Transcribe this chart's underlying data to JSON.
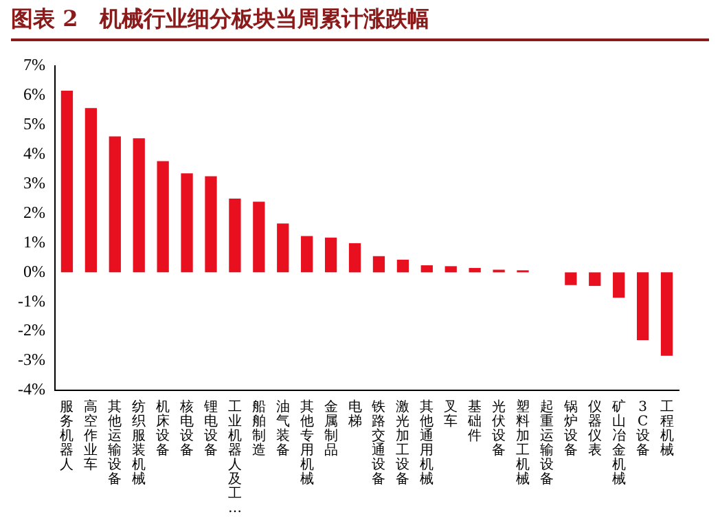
{
  "chart_data": {
    "type": "bar",
    "title": "图表 2　机械行业细分板块当周累计涨跌幅",
    "categories": [
      "服务机器人",
      "高空作业车",
      "其他运输设备",
      "纺织服装机械",
      "机床设备",
      "核电设备",
      "锂电设备",
      "工业机器人及工…",
      "船舶制造",
      "油气装备",
      "其他专用机械",
      "金属制品",
      "电梯",
      "铁路交通设备",
      "激光加工设备",
      "其他通用机械",
      "叉车",
      "基础件",
      "光伏设备",
      "塑料加工机械",
      "起重运输设备",
      "锅炉设备",
      "仪器仪表",
      "矿山冶金机械",
      "3C设备",
      "工程机械"
    ],
    "values": [
      6.16,
      5.57,
      4.61,
      4.55,
      3.77,
      3.36,
      3.26,
      2.5,
      2.4,
      1.66,
      1.23,
      1.18,
      0.99,
      0.55,
      0.43,
      0.24,
      0.21,
      0.15,
      0.09,
      0.07,
      null,
      -0.43,
      -0.46,
      -0.86,
      -2.3,
      -2.83
    ],
    "color": "#e8101e",
    "ylim": [
      -4,
      7
    ],
    "yticks": [
      {
        "value": -4,
        "label": "-4%"
      },
      {
        "value": -3,
        "label": "-3%"
      },
      {
        "value": -2,
        "label": "-2%"
      },
      {
        "value": -1,
        "label": "-1%"
      },
      {
        "value": 0,
        "label": "0%"
      },
      {
        "value": 1,
        "label": "1%"
      },
      {
        "value": 2,
        "label": "2%"
      },
      {
        "value": 3,
        "label": "3%"
      },
      {
        "value": 4,
        "label": "4%"
      },
      {
        "value": 5,
        "label": "5%"
      },
      {
        "value": 6,
        "label": "6%"
      },
      {
        "value": 7,
        "label": "7%"
      }
    ],
    "grid": false,
    "legend": false
  }
}
